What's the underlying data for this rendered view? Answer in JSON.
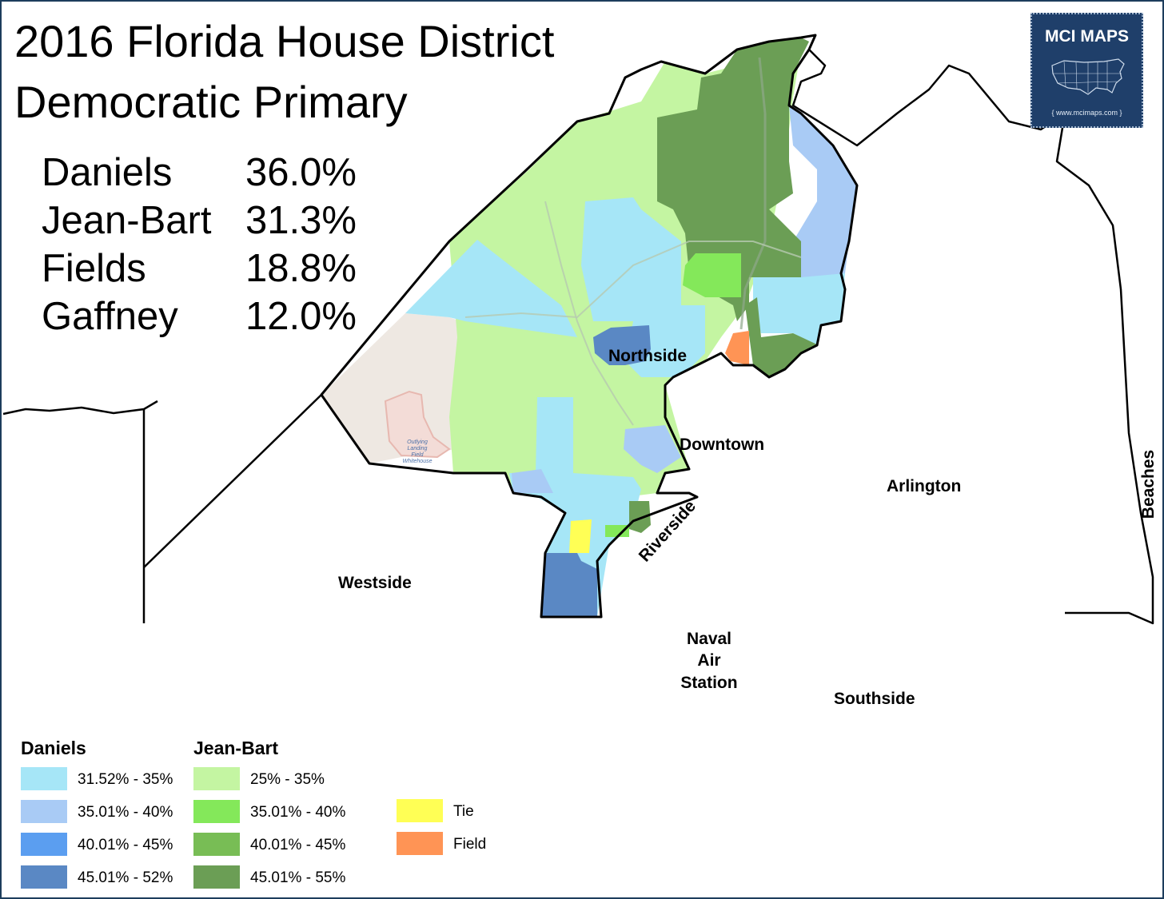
{
  "title": {
    "line1": "2016 Florida House District",
    "line2": "Democratic Primary"
  },
  "results": [
    {
      "candidate": "Daniels",
      "percent": "36.0%"
    },
    {
      "candidate": "Jean-Bart",
      "percent": "31.3%"
    },
    {
      "candidate": "Fields",
      "percent": "18.8%"
    },
    {
      "candidate": "Gaffney",
      "percent": "12.0%"
    }
  ],
  "logo": {
    "title": "MCI MAPS",
    "subtitle": "{ www.mcimaps.com }",
    "icon": "us-map-icon"
  },
  "places": {
    "northside": "Northside",
    "downtown": "Downtown",
    "arlington": "Arlington",
    "beaches": "Beaches",
    "riverside": "Riverside",
    "westside": "Westside",
    "nas_line1": "Naval",
    "nas_line2": "Air",
    "nas_line3": "Station",
    "southside": "Southside"
  },
  "basemap_labels": {
    "airfield_line1": "Outlying",
    "airfield_line2": "Landing",
    "airfield_line3": "Field Whitehouse"
  },
  "legend": {
    "daniels": {
      "heading": "Daniels",
      "items": [
        {
          "label": "31.52% - 35%",
          "color": "#a6e6f7"
        },
        {
          "label": "35.01% - 40%",
          "color": "#a9cbf5"
        },
        {
          "label": "40.01% - 45%",
          "color": "#5b9ef0"
        },
        {
          "label": "45.01% - 52%",
          "color": "#5a88c4"
        }
      ]
    },
    "jean_bart": {
      "heading": "Jean-Bart",
      "items": [
        {
          "label": "25% - 35%",
          "color": "#c4f5a2"
        },
        {
          "label": "35.01% - 40%",
          "color": "#84e85a"
        },
        {
          "label": "40.01% - 45%",
          "color": "#78bd55"
        },
        {
          "label": "45.01% - 55%",
          "color": "#6b9e55"
        }
      ]
    },
    "other": {
      "items": [
        {
          "label": "Tie",
          "color": "#ffff55"
        },
        {
          "label": "Field",
          "color": "#ff9455"
        }
      ]
    }
  },
  "colors": {
    "daniels_light": "#a6e6f7",
    "daniels_mid": "#a9cbf5",
    "daniels_strong": "#5b9ef0",
    "daniels_strongest": "#5a88c4",
    "jb_light": "#c4f5a2",
    "jb_mid": "#84e85a",
    "jb_strong": "#78bd55",
    "jb_strongest": "#6b9e55",
    "tie": "#ffff55",
    "field": "#ff9455",
    "frame": "#1d3d5c",
    "logo_bg": "#1f3f6a"
  }
}
